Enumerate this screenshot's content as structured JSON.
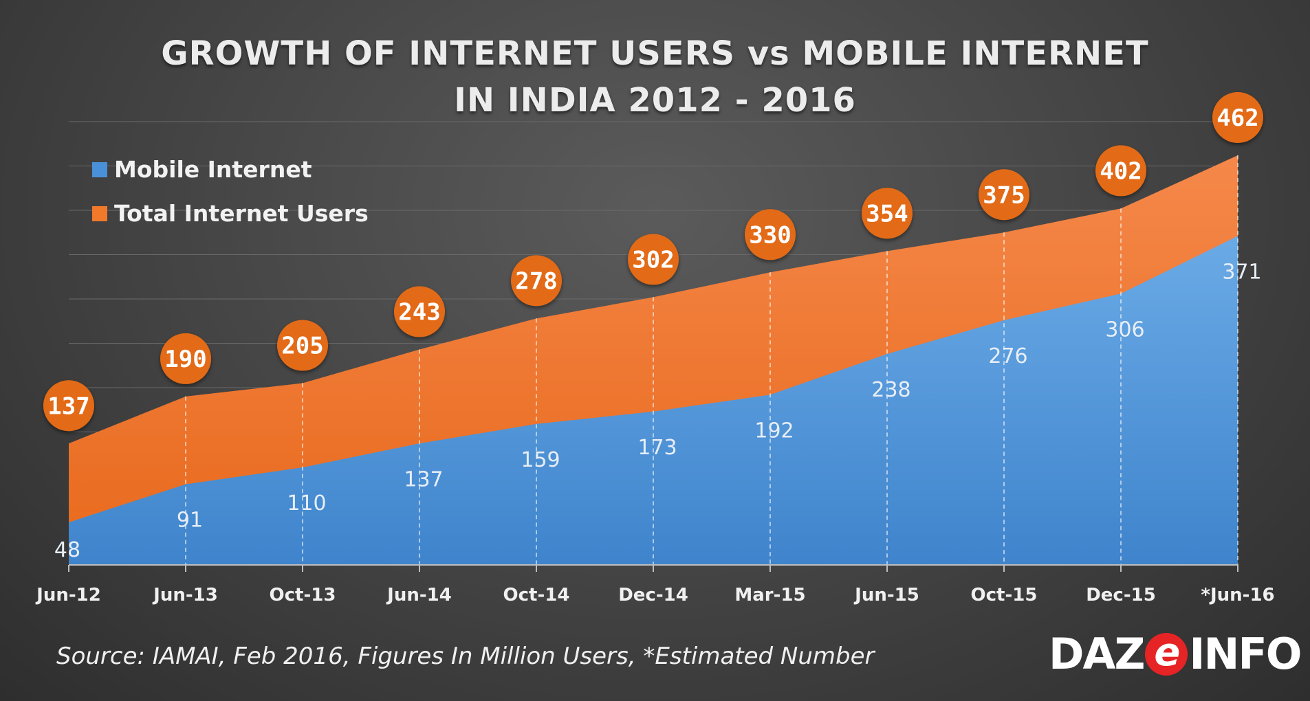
{
  "title": {
    "line1": "GROWTH OF INTERNET USERS vs MOBILE INTERNET",
    "line2": "IN INDIA 2012 - 2016"
  },
  "source_note": "Source: IAMAI, Feb 2016, Figures In Million Users, *Estimated Number",
  "logo": {
    "part1": "DAZ",
    "mark": "e",
    "part2": "INFO"
  },
  "colors": {
    "mobile": "#4a90d9",
    "total": "#f07a2a",
    "bubble": "#e36b14",
    "legend_mobile": "#4a90d9",
    "legend_total": "#f07a2a"
  },
  "chart_data": {
    "type": "area",
    "categories": [
      "Jun-12",
      "Jun-13",
      "Oct-13",
      "Jun-14",
      "Oct-14",
      "Dec-14",
      "Mar-15",
      "Jun-15",
      "Oct-15",
      "Dec-15",
      "*Jun-16"
    ],
    "series": [
      {
        "name": "Mobile Internet",
        "values": [
          48,
          91,
          110,
          137,
          159,
          173,
          192,
          238,
          276,
          306,
          371
        ]
      },
      {
        "name": "Total Internet Users",
        "values": [
          137,
          190,
          205,
          243,
          278,
          302,
          330,
          354,
          375,
          402,
          462
        ]
      }
    ],
    "legend": [
      "Mobile Internet",
      "Total Internet Users"
    ],
    "legend_position": "top-left",
    "grid": true,
    "ylim": [
      0,
      500
    ]
  }
}
